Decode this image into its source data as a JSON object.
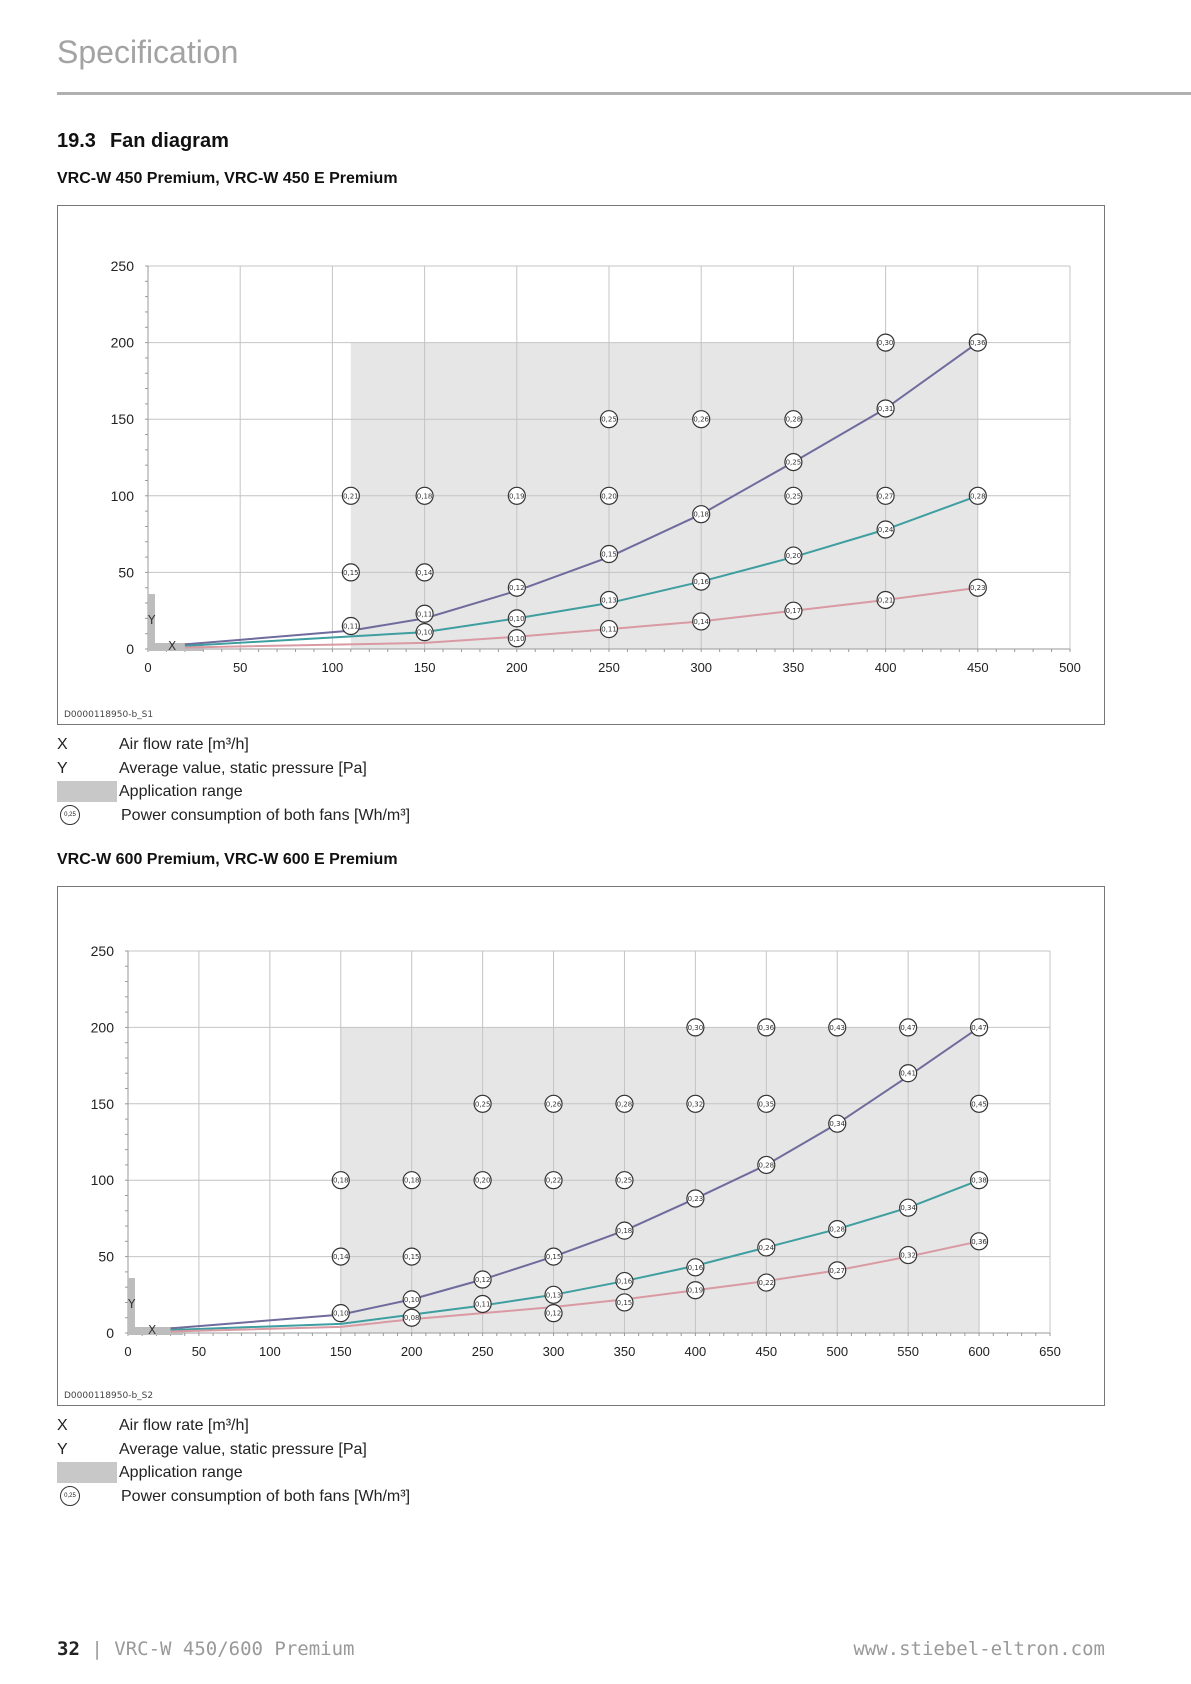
{
  "header": {
    "title": "Specification"
  },
  "section": {
    "number": "19.3",
    "title": "Fan diagram"
  },
  "legend": {
    "x_key": "X",
    "x_text": "Air flow rate [m³/h]",
    "y_key": "Y",
    "y_text": "Average value, static pressure [Pa]",
    "range_text": "Application range",
    "circle_sample": "0,25",
    "circle_text": "Power consumption of both fans [Wh/m³]"
  },
  "footer": {
    "page": "32",
    "separator": "|",
    "doc": "VRC-W 450/600 Premium",
    "url": "www.stiebel-eltron.com"
  },
  "colors": {
    "purple": "#6f6b9c",
    "teal": "#3f9ea0",
    "pink": "#d99aa3",
    "range": "#e6e6e6"
  },
  "chart_data": [
    {
      "type": "line",
      "title": "VRC-W 450 Premium, VRC-W 450 E Premium",
      "doc_id": "D0000118950-b_S1",
      "xlabel": "X",
      "ylabel": "Y",
      "xlim": [
        0,
        500
      ],
      "ylim": [
        0,
        250
      ],
      "xticks": [
        "0",
        "50",
        "100",
        "150",
        "200",
        "250",
        "300",
        "350",
        "400",
        "450",
        "500"
      ],
      "yticks": [
        "0",
        "50",
        "100",
        "150",
        "200",
        "250"
      ],
      "application_range": {
        "x": [
          110,
          450
        ],
        "y": [
          0,
          200
        ]
      },
      "series": [
        {
          "name": "purple",
          "x": [
            20,
            110,
            150,
            200,
            250,
            300,
            350,
            400,
            450
          ],
          "y": [
            3,
            12,
            20,
            38,
            60,
            88,
            122,
            157,
            200
          ]
        },
        {
          "name": "teal",
          "x": [
            20,
            150,
            200,
            250,
            300,
            350,
            400,
            450
          ],
          "y": [
            2,
            11,
            20,
            30,
            44,
            60,
            78,
            100
          ]
        },
        {
          "name": "pink",
          "x": [
            20,
            150,
            200,
            250,
            300,
            350,
            400,
            450
          ],
          "y": [
            1,
            4,
            8,
            13,
            18,
            25,
            32,
            40
          ]
        }
      ],
      "labels": [
        [
          400,
          200,
          "0,30"
        ],
        [
          450,
          200,
          "0,36"
        ],
        [
          250,
          150,
          "0,25"
        ],
        [
          300,
          150,
          "0,26"
        ],
        [
          350,
          150,
          "0,28"
        ],
        [
          400,
          157,
          "0,31"
        ],
        [
          350,
          122,
          "0,25"
        ],
        [
          110,
          100,
          "0,21"
        ],
        [
          150,
          100,
          "0,18"
        ],
        [
          200,
          100,
          "0,19"
        ],
        [
          250,
          100,
          "0,20"
        ],
        [
          350,
          100,
          "0,25"
        ],
        [
          400,
          100,
          "0,27"
        ],
        [
          450,
          100,
          "0,28"
        ],
        [
          300,
          88,
          "0,18"
        ],
        [
          400,
          78,
          "0,24"
        ],
        [
          250,
          62,
          "0,15"
        ],
        [
          350,
          61,
          "0,20"
        ],
        [
          110,
          50,
          "0,15"
        ],
        [
          150,
          50,
          "0,14"
        ],
        [
          200,
          40,
          "0,12"
        ],
        [
          300,
          44,
          "0,16"
        ],
        [
          250,
          32,
          "0,13"
        ],
        [
          450,
          40,
          "0,23"
        ],
        [
          400,
          32,
          "0,21"
        ],
        [
          350,
          25,
          "0,17"
        ],
        [
          150,
          23,
          "0,11"
        ],
        [
          110,
          15,
          "0,11"
        ],
        [
          150,
          11,
          "0,10"
        ],
        [
          200,
          20,
          "0,10"
        ],
        [
          200,
          7,
          "0,10"
        ],
        [
          250,
          13,
          "0,11"
        ],
        [
          300,
          18,
          "0,14"
        ]
      ]
    },
    {
      "type": "line",
      "title": "VRC-W 600 Premium, VRC-W 600 E Premium",
      "doc_id": "D0000118950-b_S2",
      "xlabel": "X",
      "ylabel": "Y",
      "xlim": [
        0,
        650
      ],
      "ylim": [
        0,
        250
      ],
      "xticks": [
        "0",
        "50",
        "100",
        "150",
        "200",
        "250",
        "300",
        "350",
        "400",
        "450",
        "500",
        "550",
        "600",
        "650"
      ],
      "yticks": [
        "0",
        "50",
        "100",
        "150",
        "200",
        "250"
      ],
      "application_range": {
        "x": [
          150,
          600
        ],
        "y": [
          0,
          200
        ]
      },
      "series": [
        {
          "name": "purple",
          "x": [
            30,
            150,
            200,
            250,
            300,
            350,
            400,
            450,
            500,
            550,
            600
          ],
          "y": [
            3,
            12,
            22,
            35,
            50,
            67,
            88,
            110,
            137,
            168,
            200
          ]
        },
        {
          "name": "teal",
          "x": [
            30,
            150,
            200,
            250,
            300,
            350,
            400,
            450,
            500,
            550,
            600
          ],
          "y": [
            2,
            6,
            12,
            18,
            25,
            34,
            44,
            56,
            68,
            82,
            100
          ]
        },
        {
          "name": "pink",
          "x": [
            30,
            150,
            200,
            250,
            300,
            350,
            400,
            450,
            500,
            550,
            600
          ],
          "y": [
            1,
            4,
            9,
            13,
            17,
            22,
            28,
            34,
            41,
            50,
            60
          ]
        }
      ],
      "labels": [
        [
          400,
          200,
          "0,30"
        ],
        [
          450,
          200,
          "0,36"
        ],
        [
          500,
          200,
          "0,43"
        ],
        [
          550,
          200,
          "0,47"
        ],
        [
          600,
          200,
          "0,47"
        ],
        [
          550,
          170,
          "0,41"
        ],
        [
          250,
          150,
          "0,25"
        ],
        [
          300,
          150,
          "0,26"
        ],
        [
          350,
          150,
          "0,28"
        ],
        [
          400,
          150,
          "0,32"
        ],
        [
          450,
          150,
          "0,35"
        ],
        [
          600,
          150,
          "0,45"
        ],
        [
          500,
          137,
          "0,34"
        ],
        [
          450,
          110,
          "0,28"
        ],
        [
          150,
          100,
          "0,18"
        ],
        [
          200,
          100,
          "0,18"
        ],
        [
          250,
          100,
          "0,20"
        ],
        [
          300,
          100,
          "0,22"
        ],
        [
          350,
          100,
          "0,25"
        ],
        [
          600,
          100,
          "0,38"
        ],
        [
          400,
          88,
          "0,23"
        ],
        [
          550,
          82,
          "0,34"
        ],
        [
          500,
          68,
          "0,28"
        ],
        [
          350,
          67,
          "0,18"
        ],
        [
          450,
          56,
          "0,24"
        ],
        [
          600,
          60,
          "0,36"
        ],
        [
          150,
          50,
          "0,14"
        ],
        [
          200,
          50,
          "0,15"
        ],
        [
          300,
          50,
          "0,15"
        ],
        [
          550,
          51,
          "0,32"
        ],
        [
          400,
          43,
          "0,16"
        ],
        [
          500,
          41,
          "0,27"
        ],
        [
          250,
          35,
          "0,12"
        ],
        [
          350,
          34,
          "0,16"
        ],
        [
          450,
          33,
          "0,22"
        ],
        [
          400,
          28,
          "0,19"
        ],
        [
          300,
          25,
          "0,13"
        ],
        [
          200,
          22,
          "0,10"
        ],
        [
          250,
          19,
          "0,11"
        ],
        [
          350,
          20,
          "0,15"
        ],
        [
          150,
          13,
          "0,10"
        ],
        [
          300,
          13,
          "0,12"
        ],
        [
          200,
          10,
          "0,08"
        ]
      ]
    }
  ]
}
